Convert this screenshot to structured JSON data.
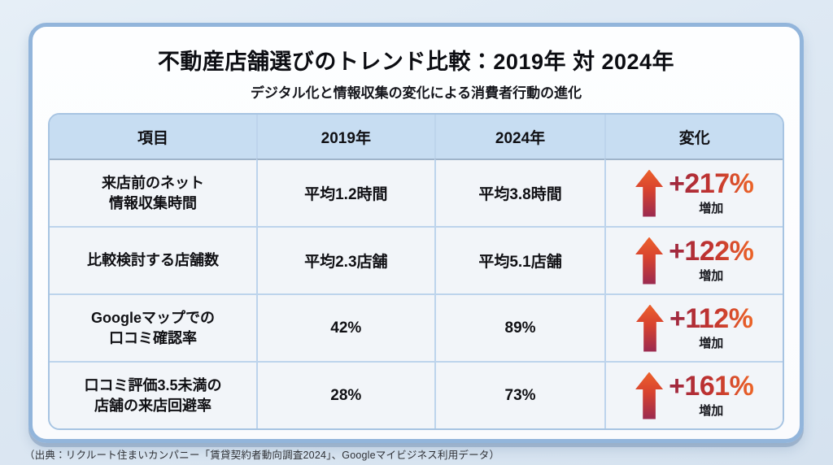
{
  "chart_data": {
    "type": "table",
    "title": "不動産店舗選びのトレンド比較：2019年 対 2024年",
    "subtitle": "デジタル化と情報収集の変化による消費者行動の進化",
    "columns": [
      "項目",
      "2019年",
      "2024年",
      "変化"
    ],
    "rows": [
      {
        "item": "来店前のネット\n情報収集時間",
        "v2019": "平均1.2時間",
        "v2024": "平均3.8時間",
        "change_pct": "+217%",
        "change_label": "増加",
        "direction": "up"
      },
      {
        "item": "比較検討する店舗数",
        "v2019": "平均2.3店舗",
        "v2024": "平均5.1店舗",
        "change_pct": "+122%",
        "change_label": "増加",
        "direction": "up"
      },
      {
        "item": "Googleマップでの\n口コミ確認率",
        "v2019": "42%",
        "v2024": "89%",
        "change_pct": "+112%",
        "change_label": "増加",
        "direction": "up"
      },
      {
        "item": "口コミ評価3.5未満の\n店舗の来店回避率",
        "v2019": "28%",
        "v2024": "73%",
        "change_pct": "+161%",
        "change_label": "増加",
        "direction": "up"
      }
    ],
    "source": "（出典：リクルート住まいカンパニー「賃貸契約者動向調査2024」、Googleマイビジネス利用データ）",
    "legend_position": "none",
    "grid": true
  },
  "colors": {
    "page_background": "#dde8f3",
    "card_background": "#fdfeff",
    "card_border": "#92b5db",
    "table_header_background": "#c7ddf2",
    "table_row_background": "#f2f5f9",
    "table_border": "#bdd4ec",
    "accent_gradient_start": "#9c2740",
    "accent_gradient_end": "#ec6428",
    "arrow_gradient_top": "#ec612c",
    "arrow_gradient_bottom": "#9a2a50",
    "text_color": "#0c0d12"
  }
}
